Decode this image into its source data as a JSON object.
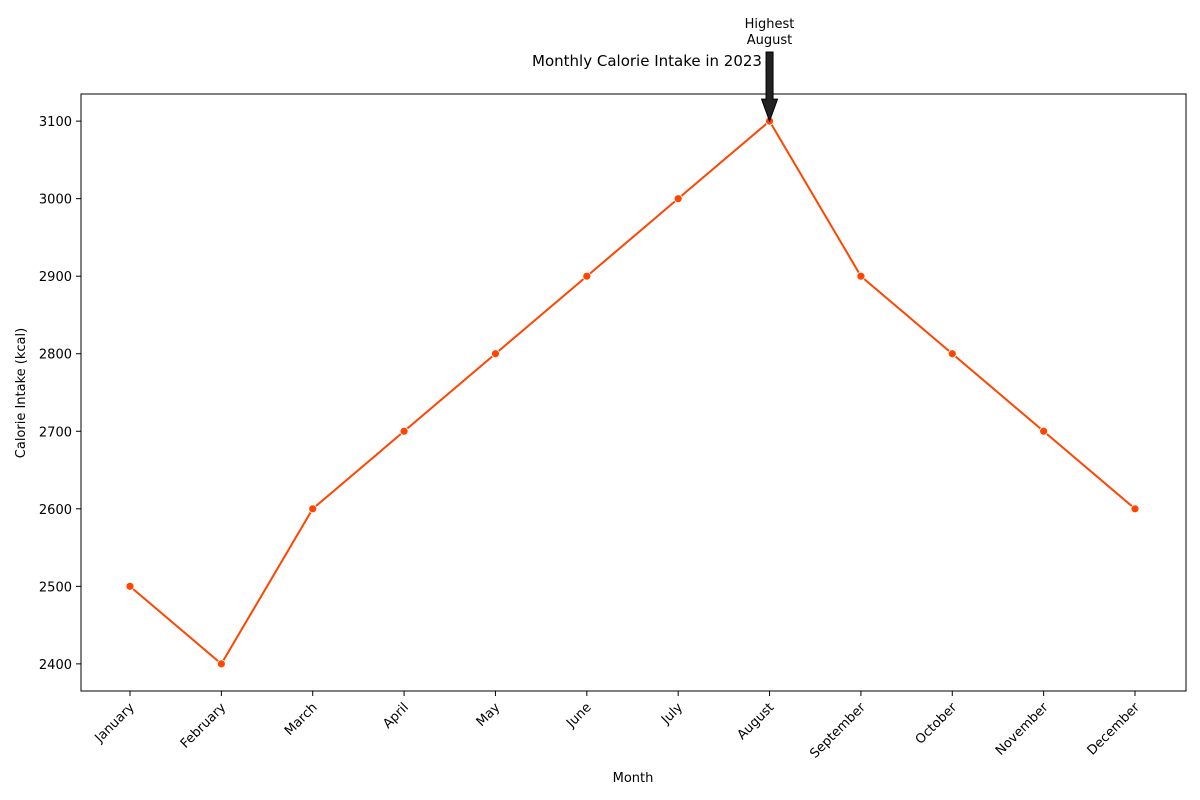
{
  "chart_data": {
    "type": "line",
    "title": "Monthly Calorie Intake in 2023",
    "xlabel": "Month",
    "ylabel": "Calorie Intake (kcal)",
    "categories": [
      "January",
      "February",
      "March",
      "April",
      "May",
      "June",
      "July",
      "August",
      "September",
      "October",
      "November",
      "December"
    ],
    "series": [
      {
        "values": [
          2500,
          2400,
          2600,
          2700,
          2800,
          2900,
          3000,
          3100,
          2900,
          2800,
          2700,
          2600
        ],
        "color": "#ff4500",
        "marker": "circle"
      }
    ],
    "ylim": [
      2365,
      3135
    ],
    "yticks": [
      2400,
      2500,
      2600,
      2700,
      2800,
      2900,
      3000,
      3100
    ],
    "grid": false,
    "annotation": {
      "lines": [
        "Highest",
        "August"
      ],
      "category": "August",
      "value": 3100,
      "arrow_color": "#222222"
    }
  }
}
